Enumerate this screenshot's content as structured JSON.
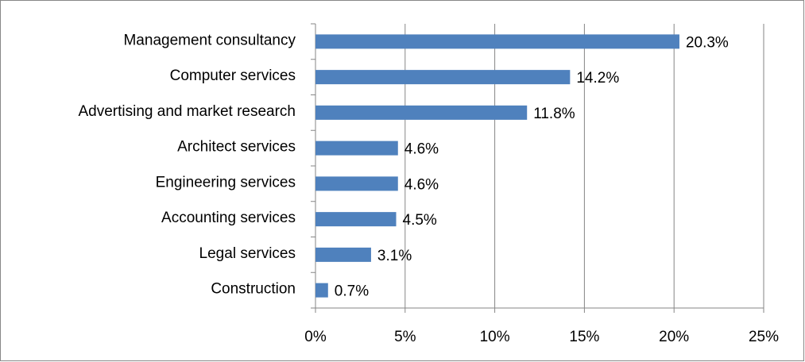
{
  "chart_data": {
    "type": "bar",
    "orientation": "horizontal",
    "categories": [
      "Management consultancy",
      "Computer services",
      "Advertising and market research",
      "Architect services",
      "Engineering services",
      "Accounting services",
      "Legal services",
      "Construction"
    ],
    "values": [
      20.3,
      14.2,
      11.8,
      4.6,
      4.6,
      4.5,
      3.1,
      0.7
    ],
    "value_labels": [
      "20.3%",
      "14.2%",
      "11.8%",
      "4.6%",
      "4.6%",
      "4.5%",
      "3.1%",
      "0.7%"
    ],
    "color": "#4f81bd",
    "xlim": [
      0,
      25
    ],
    "xticks": [
      {
        "value": 0,
        "label": "0%"
      },
      {
        "value": 5,
        "label": "5%"
      },
      {
        "value": 10,
        "label": "10%"
      },
      {
        "value": 15,
        "label": "15%"
      },
      {
        "value": 20,
        "label": "20%"
      },
      {
        "value": 25,
        "label": "25%"
      }
    ],
    "grid": true
  }
}
